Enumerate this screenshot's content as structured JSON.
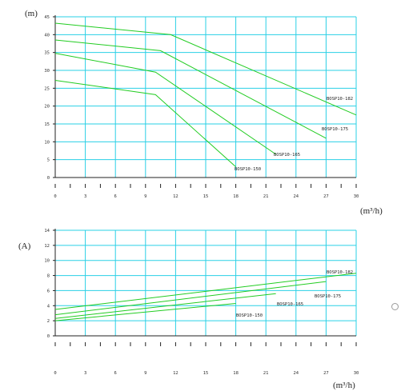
{
  "chart_data": [
    {
      "type": "line",
      "ylabel": "(m)",
      "xlabel": "(m³/h)",
      "xlim": [
        0,
        30
      ],
      "ylim": [
        0,
        45
      ],
      "x_ticks": [
        "0",
        "3",
        "6",
        "9",
        "12",
        "15",
        "18",
        "21",
        "24",
        "27",
        "30"
      ],
      "y_ticks": [
        "0",
        "5",
        "10",
        "15",
        "20",
        "25",
        "30",
        "35",
        "40",
        "45"
      ],
      "grid": true,
      "series": [
        {
          "name": "BOSP10-182",
          "color": "#22cc22",
          "points": [
            [
              0,
              43.2
            ],
            [
              11.5,
              40.0
            ],
            [
              30,
              17.5
            ]
          ]
        },
        {
          "name": "BOSP10-175",
          "color": "#22cc22",
          "points": [
            [
              0,
              38.5
            ],
            [
              10.5,
              35.5
            ],
            [
              27,
              11.0
            ]
          ]
        },
        {
          "name": "BOSP10-165",
          "color": "#22cc22",
          "points": [
            [
              0,
              34.8
            ],
            [
              10.0,
              29.5
            ],
            [
              22,
              6.5
            ]
          ]
        },
        {
          "name": "BOSP10-150",
          "color": "#22cc22",
          "points": [
            [
              0,
              27.2
            ],
            [
              10.0,
              23.2
            ],
            [
              18,
              3.0
            ]
          ]
        }
      ]
    },
    {
      "type": "line",
      "ylabel": "(A)",
      "xlabel": "(m³/h)",
      "xlim": [
        0,
        30
      ],
      "ylim": [
        0,
        14
      ],
      "x_ticks": [
        "0",
        "3",
        "6",
        "9",
        "12",
        "15",
        "18",
        "21",
        "24",
        "27",
        "30"
      ],
      "y_ticks": [
        "0",
        "2",
        "4",
        "6",
        "8",
        "10",
        "12",
        "14"
      ],
      "grid": true,
      "series": [
        {
          "name": "BOSP10-182",
          "color": "#22cc22",
          "points": [
            [
              0,
              3.5
            ],
            [
              30,
              8.3
            ]
          ]
        },
        {
          "name": "BOSP10-175",
          "color": "#22cc22",
          "points": [
            [
              0,
              2.8
            ],
            [
              27,
              7.2
            ]
          ]
        },
        {
          "name": "BOSP10-165",
          "color": "#22cc22",
          "points": [
            [
              0,
              2.3
            ],
            [
              22,
              5.6
            ]
          ]
        },
        {
          "name": "BOSP10-150",
          "color": "#22cc22",
          "points": [
            [
              0,
              2.0
            ],
            [
              18,
              4.3
            ]
          ]
        }
      ]
    }
  ],
  "ui": {
    "radio_selected": false
  }
}
